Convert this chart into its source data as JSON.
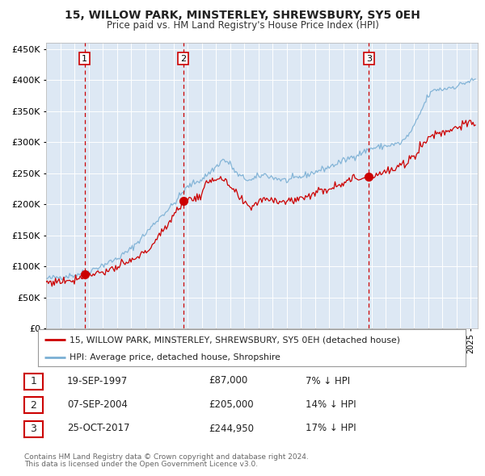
{
  "title": "15, WILLOW PARK, MINSTERLEY, SHREWSBURY, SY5 0EH",
  "subtitle": "Price paid vs. HM Land Registry's House Price Index (HPI)",
  "legend_line1": "15, WILLOW PARK, MINSTERLEY, SHREWSBURY, SY5 0EH (detached house)",
  "legend_line2": "HPI: Average price, detached house, Shropshire",
  "footer1": "Contains HM Land Registry data © Crown copyright and database right 2024.",
  "footer2": "This data is licensed under the Open Government Licence v3.0.",
  "transactions": [
    {
      "num": 1,
      "date": "19-SEP-1997",
      "price": "£87,000",
      "hpi_diff": "7% ↓ HPI",
      "x_year": 1997.72,
      "y_val": 87000
    },
    {
      "num": 2,
      "date": "07-SEP-2004",
      "price": "£205,000",
      "hpi_diff": "14% ↓ HPI",
      "x_year": 2004.69,
      "y_val": 205000
    },
    {
      "num": 3,
      "date": "25-OCT-2017",
      "price": "£244,950",
      "hpi_diff": "17% ↓ HPI",
      "x_year": 2017.81,
      "y_val": 244950
    }
  ],
  "red_line_color": "#cc0000",
  "blue_line_color": "#7aafd4",
  "dashed_line_color": "#cc0000",
  "bg_color": "#dde8f4",
  "grid_color": "#ffffff",
  "ylim": [
    0,
    460000
  ],
  "xlim_start": 1995.0,
  "xlim_end": 2025.5
}
